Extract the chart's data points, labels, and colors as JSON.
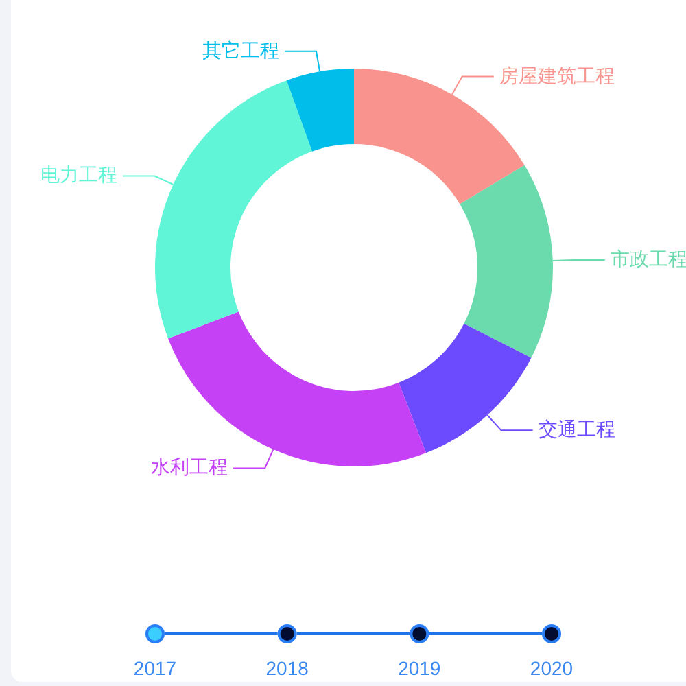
{
  "chart_data": {
    "type": "donut",
    "categories": [
      "房屋建筑工程",
      "市政工程",
      "交通工程",
      "水利工程",
      "电力工程",
      "其它工程"
    ],
    "values": [
      16.4,
      16.1,
      11.6,
      25.1,
      25.3,
      5.5
    ],
    "colors": [
      "#f9938d",
      "#6bdbad",
      "#6c4afd",
      "#c541f5",
      "#60f5d6",
      "#00bde9"
    ],
    "annotations": [
      "2017",
      "2018",
      "2019",
      "2020"
    ]
  }
}
